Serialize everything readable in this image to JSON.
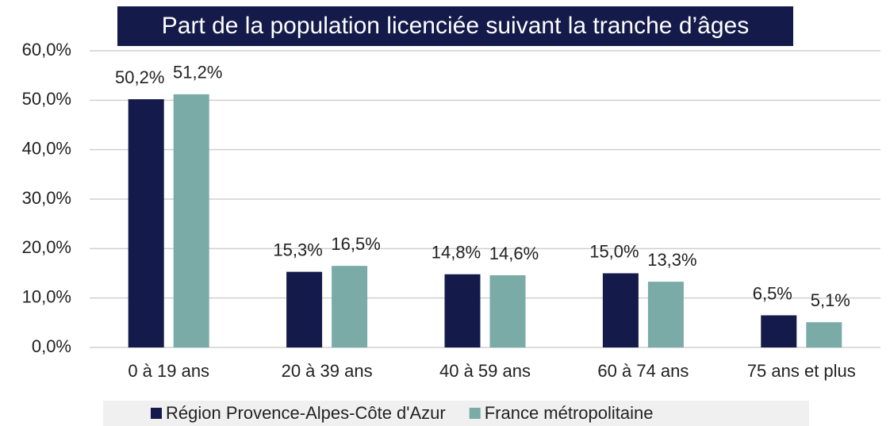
{
  "chart_data": {
    "type": "bar",
    "title": "Part de la population licenciée suivant la tranche d’âges",
    "categories": [
      "0 à 19 ans",
      "20 à 39 ans",
      "40 à 59 ans",
      "60 à 74 ans",
      "75 ans et plus"
    ],
    "series": [
      {
        "name": "Région Provence-Alpes-Côte d'Azur",
        "color": "#141a4a",
        "values": [
          50.2,
          15.3,
          14.8,
          15.0,
          6.5
        ],
        "value_labels": [
          "50,2%",
          "15,3%",
          "14,8%",
          "15,0%",
          "6,5%"
        ]
      },
      {
        "name": "France métropolitaine",
        "color": "#7aaba7",
        "values": [
          51.2,
          16.5,
          14.6,
          13.3,
          5.1
        ],
        "value_labels": [
          "51,2%",
          "16,5%",
          "14,6%",
          "13,3%",
          "5,1%"
        ]
      }
    ],
    "ylim": [
      0,
      60
    ],
    "yticks": [
      {
        "value": 0,
        "label": "0,0%"
      },
      {
        "value": 10,
        "label": "10,0%"
      },
      {
        "value": 20,
        "label": "20,0%"
      },
      {
        "value": 30,
        "label": "30,0%"
      },
      {
        "value": 40,
        "label": "40,0%"
      },
      {
        "value": 50,
        "label": "50,0%"
      },
      {
        "value": 60,
        "label": "60,0%"
      }
    ],
    "grid": true,
    "legend": "bottom"
  }
}
